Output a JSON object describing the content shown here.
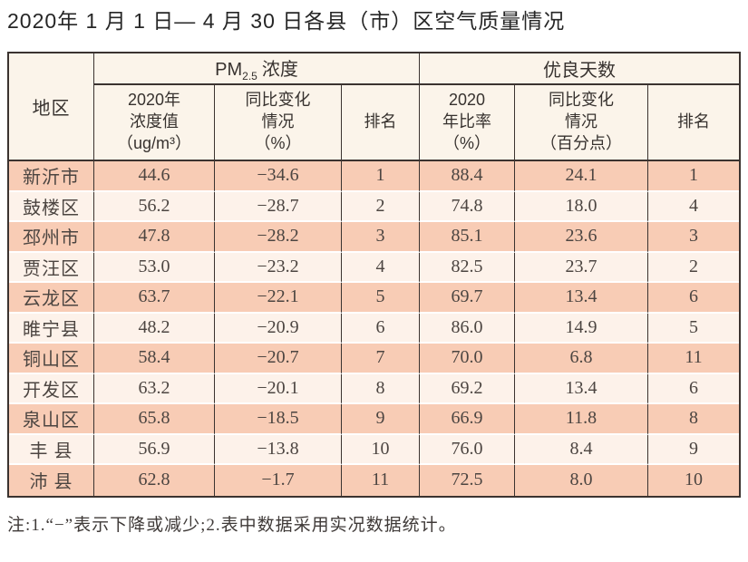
{
  "page": {
    "title": "2020年 1 月 1 日— 4 月 30 日各县（市）区空气质量情况",
    "note": "注:1.“−”表示下降或减少;2.表中数据采用实况数据统计。"
  },
  "colors": {
    "row_dark": "#f8ccb5",
    "row_light": "#fdf2ea",
    "header_bg": "#fbf4ea",
    "border_dark": "#3b3330"
  },
  "table": {
    "col_region": "地区",
    "group_pm": {
      "prefix": "PM",
      "sub": "2.5",
      "suffix": "浓度"
    },
    "group_good": "优良天数",
    "sub_headers": {
      "pm_value": "2020年\n浓度值\n（ug/m³）",
      "pm_change": "同比变化\n情况\n（%）",
      "pm_rank": "排名",
      "good_rate": "2020\n年比率\n（%）",
      "good_change": "同比变化\n情况\n（百分点）",
      "good_rank": "排名"
    },
    "rows": [
      {
        "region": "新沂市",
        "pm_value": "44.6",
        "pm_change": "−34.6",
        "pm_rank": "1",
        "good_rate": "88.4",
        "good_change": "24.1",
        "good_rank": "1"
      },
      {
        "region": "鼓楼区",
        "pm_value": "56.2",
        "pm_change": "−28.7",
        "pm_rank": "2",
        "good_rate": "74.8",
        "good_change": "18.0",
        "good_rank": "4"
      },
      {
        "region": "邳州市",
        "pm_value": "47.8",
        "pm_change": "−28.2",
        "pm_rank": "3",
        "good_rate": "85.1",
        "good_change": "23.6",
        "good_rank": "3"
      },
      {
        "region": "贾汪区",
        "pm_value": "53.0",
        "pm_change": "−23.2",
        "pm_rank": "4",
        "good_rate": "82.5",
        "good_change": "23.7",
        "good_rank": "2"
      },
      {
        "region": "云龙区",
        "pm_value": "63.7",
        "pm_change": "−22.1",
        "pm_rank": "5",
        "good_rate": "69.7",
        "good_change": "13.4",
        "good_rank": "6"
      },
      {
        "region": "睢宁县",
        "pm_value": "48.2",
        "pm_change": "−20.9",
        "pm_rank": "6",
        "good_rate": "86.0",
        "good_change": "14.9",
        "good_rank": "5"
      },
      {
        "region": "铜山区",
        "pm_value": "58.4",
        "pm_change": "−20.7",
        "pm_rank": "7",
        "good_rate": "70.0",
        "good_change": "6.8",
        "good_rank": "11"
      },
      {
        "region": "开发区",
        "pm_value": "63.2",
        "pm_change": "−20.1",
        "pm_rank": "8",
        "good_rate": "69.2",
        "good_change": "13.4",
        "good_rank": "6"
      },
      {
        "region": "泉山区",
        "pm_value": "65.8",
        "pm_change": "−18.5",
        "pm_rank": "9",
        "good_rate": "66.9",
        "good_change": "11.8",
        "good_rank": "8"
      },
      {
        "region": "丰 县",
        "pm_value": "56.9",
        "pm_change": "−13.8",
        "pm_rank": "10",
        "good_rate": "76.0",
        "good_change": "8.4",
        "good_rank": "9"
      },
      {
        "region": "沛 县",
        "pm_value": "62.8",
        "pm_change": "−1.7",
        "pm_rank": "11",
        "good_rate": "72.5",
        "good_change": "8.0",
        "good_rank": "10"
      }
    ]
  }
}
